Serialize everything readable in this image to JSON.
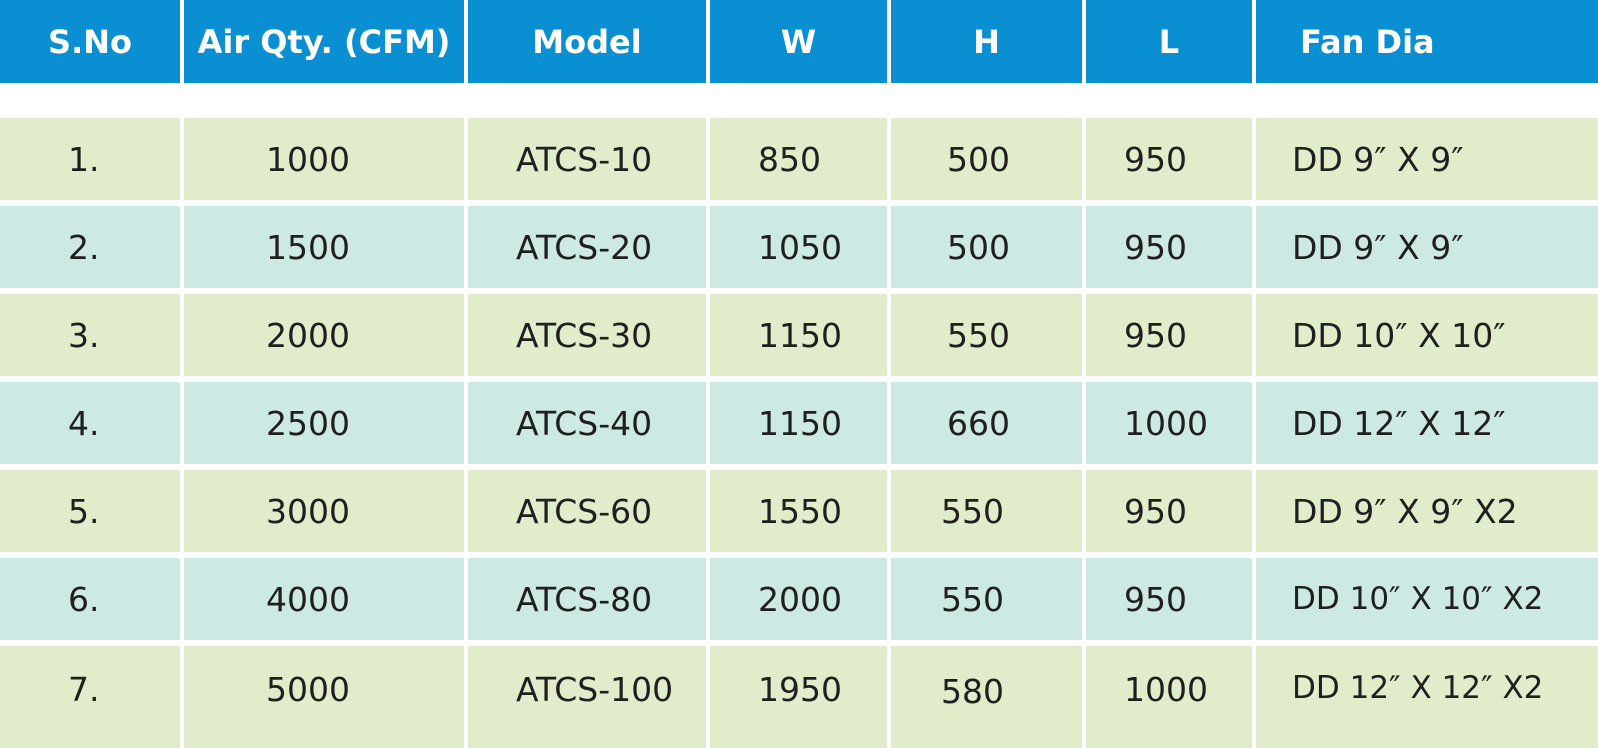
{
  "table": {
    "headers": [
      "S.No",
      "Air Qty. (CFM)",
      "Model",
      "W",
      "H",
      "L",
      "Fan Dia"
    ],
    "rows": [
      [
        "1.",
        "1000",
        "ATCS-10",
        "850",
        "500",
        "950",
        "DD 9″ X 9″"
      ],
      [
        "2.",
        "1500",
        "ATCS-20",
        "1050",
        "500",
        "950",
        "DD 9″ X 9″"
      ],
      [
        "3.",
        "2000",
        "ATCS-30",
        "1150",
        "550",
        "950",
        "DD 10″ X 10″"
      ],
      [
        "4.",
        "2500",
        "ATCS-40",
        "1150",
        "660",
        "1000",
        "DD 12″ X 12″"
      ],
      [
        "5.",
        "3000",
        "ATCS-60",
        "1550",
        "550",
        "950",
        "DD 9″ X 9″ X2"
      ],
      [
        "6.",
        "4000",
        "ATCS-80",
        "2000",
        "550",
        "950",
        "DD 10″ X 10″ X2"
      ],
      [
        "7.",
        "5000",
        "ATCS-100",
        "1950",
        "580",
        "1000",
        "DD 12″ X 12″ X2"
      ]
    ]
  },
  "colors": {
    "header_bg": "#0b8fd3",
    "row_green": "#e1eccb",
    "row_teal": "#cde9e4",
    "text": "#1f1f1f"
  }
}
